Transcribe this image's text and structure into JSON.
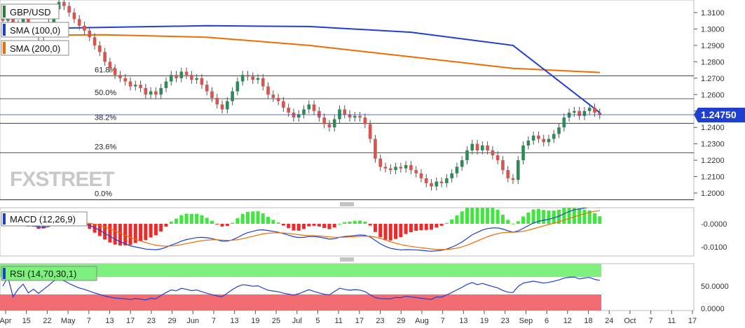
{
  "chart_data": {
    "type": "candlestick",
    "symbol": "GBP/USD",
    "current_price": "1.24750",
    "price_axis": {
      "ylim": [
        1.195,
        1.316
      ],
      "ticks": [
        "1.3100",
        "1.3000",
        "1.2900",
        "1.2800",
        "1.2700",
        "1.2600",
        "1.2500",
        "1.2400",
        "1.2300",
        "1.2200",
        "1.2100",
        "1.2000"
      ]
    },
    "x_labels": [
      "Apr",
      "15",
      "22",
      "May",
      "7",
      "13",
      "17",
      "23",
      "29",
      "Jun",
      "7",
      "13",
      "19",
      "25",
      "Jul",
      "5",
      "11",
      "17",
      "23",
      "29",
      "Aug",
      "7",
      "13",
      "19",
      "23",
      "Sep",
      "6",
      "12",
      "18",
      "24",
      "Oct",
      "7",
      "11",
      "17"
    ],
    "legend": [
      {
        "label": "GBP/USD",
        "color": "#2e7d32"
      },
      {
        "label": "SMA (100,0)",
        "color": "#1f3fd1"
      },
      {
        "label": "SMA (200,0)",
        "color": "#ef6c00"
      }
    ],
    "fibonacci": [
      {
        "label": "61.8%",
        "value": 1.2715
      },
      {
        "label": "50.0%",
        "value": 1.2575
      },
      {
        "label": "38.2%",
        "value": 1.2425
      },
      {
        "label": "23.6%",
        "value": 1.2245
      },
      {
        "label": "0.0%",
        "value": 1.196
      }
    ],
    "candles_close": [
      1.305,
      1.308,
      1.3,
      1.303,
      1.306,
      1.298,
      1.301,
      1.295,
      1.299,
      1.304,
      1.312,
      1.3165,
      1.314,
      1.31,
      1.306,
      1.302,
      1.299,
      1.295,
      1.29,
      1.286,
      1.28,
      1.276,
      1.272,
      1.27,
      1.268,
      1.265,
      1.266,
      1.264,
      1.26,
      1.262,
      1.26,
      1.264,
      1.268,
      1.272,
      1.27,
      1.274,
      1.272,
      1.269,
      1.27,
      1.266,
      1.262,
      1.258,
      1.254,
      1.251,
      1.256,
      1.262,
      1.268,
      1.272,
      1.271,
      1.269,
      1.27,
      1.265,
      1.26,
      1.258,
      1.256,
      1.252,
      1.249,
      1.246,
      1.248,
      1.251,
      1.254,
      1.25,
      1.246,
      1.242,
      1.24,
      1.245,
      1.251,
      1.248,
      1.246,
      1.247,
      1.246,
      1.242,
      1.233,
      1.221,
      1.216,
      1.215,
      1.214,
      1.216,
      1.215,
      1.217,
      1.214,
      1.212,
      1.209,
      1.206,
      1.204,
      1.207,
      1.206,
      1.209,
      1.212,
      1.216,
      1.22,
      1.226,
      1.23,
      1.226,
      1.229,
      1.226,
      1.223,
      1.22,
      1.214,
      1.209,
      1.208,
      1.22,
      1.229,
      1.232,
      1.235,
      1.233,
      1.231,
      1.233,
      1.236,
      1.24,
      1.246,
      1.249,
      1.25,
      1.247,
      1.25,
      1.252,
      1.249,
      1.2475
    ],
    "sma100": [
      [
        0,
        1.3
      ],
      [
        20,
        1.301
      ],
      [
        40,
        1.302
      ],
      [
        60,
        1.3015
      ],
      [
        80,
        1.298
      ],
      [
        100,
        1.29
      ],
      [
        117,
        1.249
      ]
    ],
    "sma200": [
      [
        0,
        1.296
      ],
      [
        20,
        1.2965
      ],
      [
        40,
        1.295
      ],
      [
        60,
        1.29
      ],
      [
        80,
        1.283
      ],
      [
        100,
        1.276
      ],
      [
        117,
        1.2735
      ]
    ],
    "macd": {
      "label": "MACD (12,26,9)",
      "ticks": [
        "-0.0000",
        "-0.0100"
      ],
      "ylim": [
        -0.014,
        0.007
      ]
    },
    "rsi": {
      "label": "RSI (14,70,30,1)",
      "ticks": [
        "50.0000",
        "0.0000"
      ],
      "ylim": [
        0,
        100
      ]
    }
  },
  "branding": {
    "logo": "FXSTREET"
  }
}
